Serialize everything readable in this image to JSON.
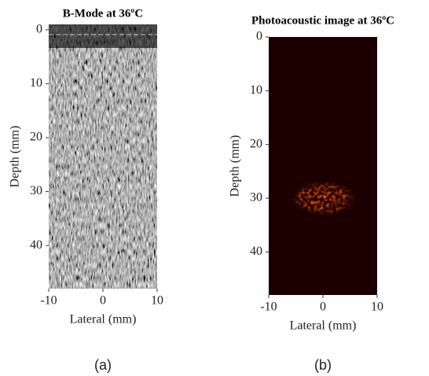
{
  "chart_data": [
    {
      "type": "image",
      "title": "B-Mode at 36ºC",
      "xlabel": "Lateral (mm)",
      "ylabel": "Depth (mm)",
      "caption": "(a)",
      "xlim": [
        -10,
        10
      ],
      "ylim": [
        -1,
        48
      ],
      "xticks": [
        -10,
        0,
        10
      ],
      "yticks": [
        0,
        10,
        20,
        30,
        40
      ]
    },
    {
      "type": "image",
      "title": "Photoacoustic image at 36ºC",
      "xlabel": "Lateral (mm)",
      "ylabel": "Depth (mm)",
      "caption": "(b)",
      "xlim": [
        -10,
        10
      ],
      "ylim": [
        0,
        48
      ],
      "xticks": [
        -10,
        0,
        10
      ],
      "yticks": [
        0,
        10,
        20,
        30,
        40
      ]
    }
  ]
}
